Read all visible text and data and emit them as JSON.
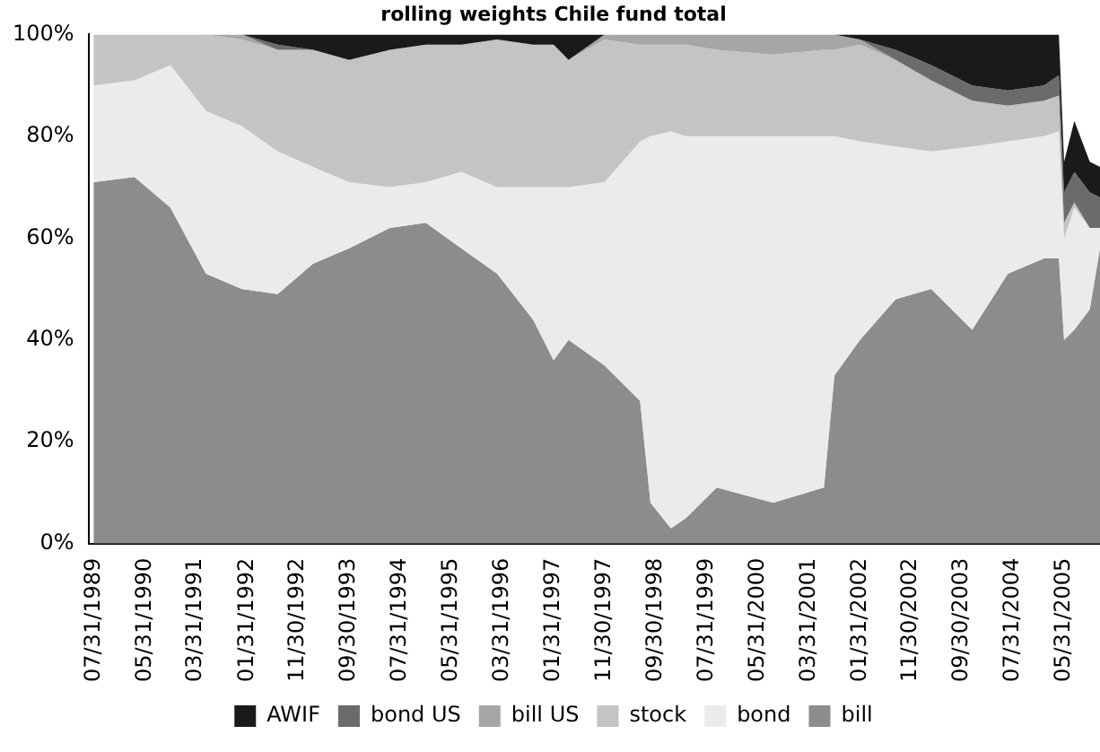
{
  "chart_data": {
    "type": "area",
    "title": "rolling weights Chile fund total",
    "stacked": true,
    "x": [
      "1989-07-31",
      "1990-03-31",
      "1990-10-31",
      "1991-05-31",
      "1991-12-31",
      "1992-07-31",
      "1993-02-28",
      "1993-09-30",
      "1994-05-31",
      "1994-12-31",
      "1995-07-31",
      "1996-02-29",
      "1996-09-30",
      "1997-01-31",
      "1997-04-30",
      "1997-11-30",
      "1998-06-30",
      "1998-08-31",
      "1998-12-31",
      "1999-03-31",
      "1999-09-30",
      "2000-08-31",
      "2001-06-30",
      "2001-08-31",
      "2002-01-31",
      "2002-08-31",
      "2003-03-31",
      "2003-11-30",
      "2004-06-30",
      "2005-01-31",
      "2005-04-30",
      "2005-05-31",
      "2005-07-31",
      "2005-10-31",
      "2005-12-31"
    ],
    "series": [
      {
        "name": "bill",
        "color": "#8c8c8c",
        "values": [
          71,
          72,
          66,
          53,
          50,
          49,
          55,
          58,
          62,
          63,
          58,
          53,
          44,
          36,
          40,
          35,
          28,
          8,
          3,
          5,
          11,
          8,
          11,
          33,
          40,
          48,
          50,
          42,
          53,
          56,
          56,
          40,
          42,
          46,
          58
        ]
      },
      {
        "name": "bond",
        "color": "#ebebeb",
        "values": [
          19,
          19,
          28,
          32,
          32,
          28,
          19,
          13,
          8,
          8,
          15,
          17,
          26,
          34,
          30,
          36,
          51,
          72,
          78,
          75,
          69,
          72,
          69,
          47,
          39,
          30,
          27,
          36,
          26,
          24,
          25,
          20,
          24,
          16,
          4
        ]
      },
      {
        "name": "stock",
        "color": "#c4c4c4",
        "values": [
          10,
          9,
          6,
          15,
          17,
          20,
          23,
          24,
          27,
          27,
          25,
          29,
          28,
          28,
          25,
          28,
          19,
          18,
          17,
          18,
          17,
          16,
          17,
          17,
          19,
          17,
          14,
          9,
          7,
          7,
          7,
          3,
          1,
          0,
          0
        ]
      },
      {
        "name": "bill US",
        "color": "#a6a6a6",
        "values": [
          null,
          null,
          null,
          0,
          1,
          0,
          null,
          null,
          null,
          null,
          null,
          null,
          null,
          null,
          0,
          1,
          2,
          2,
          2,
          2,
          3,
          4,
          3,
          3,
          1,
          0,
          null,
          null,
          null,
          null,
          null,
          null,
          null,
          null,
          null
        ]
      },
      {
        "name": "bond US",
        "color": "#6b6b6b",
        "values": [
          null,
          null,
          null,
          null,
          0,
          1,
          0,
          null,
          null,
          null,
          null,
          null,
          null,
          null,
          null,
          null,
          null,
          null,
          null,
          null,
          null,
          null,
          null,
          null,
          0,
          2,
          3,
          3,
          3,
          3,
          4,
          6,
          6,
          7,
          6
        ]
      },
      {
        "name": "AWIF",
        "color": "#1a1a1a",
        "values": [
          null,
          null,
          null,
          null,
          0,
          2,
          3,
          5,
          3,
          2,
          2,
          1,
          2,
          2,
          5,
          0,
          null,
          null,
          null,
          null,
          null,
          null,
          null,
          0,
          1,
          3,
          6,
          10,
          11,
          10,
          8,
          6,
          10,
          6,
          6
        ]
      }
    ],
    "xlim": [
      "1989-06-30",
      "2005-12-31"
    ],
    "xticks": [
      {
        "value": "1989-07-31",
        "label": "07/31/1989"
      },
      {
        "value": "1990-05-31",
        "label": "05/31/1990"
      },
      {
        "value": "1991-03-31",
        "label": "03/31/1991"
      },
      {
        "value": "1992-01-31",
        "label": "01/31/1992"
      },
      {
        "value": "1992-11-30",
        "label": "11/30/1992"
      },
      {
        "value": "1993-09-30",
        "label": "09/30/1993"
      },
      {
        "value": "1994-07-31",
        "label": "07/31/1994"
      },
      {
        "value": "1995-05-31",
        "label": "05/31/1995"
      },
      {
        "value": "1996-03-31",
        "label": "03/31/1996"
      },
      {
        "value": "1997-01-31",
        "label": "01/31/1997"
      },
      {
        "value": "1997-11-30",
        "label": "11/30/1997"
      },
      {
        "value": "1998-09-30",
        "label": "09/30/1998"
      },
      {
        "value": "1999-07-31",
        "label": "07/31/1999"
      },
      {
        "value": "2000-05-31",
        "label": "05/31/2000"
      },
      {
        "value": "2001-03-31",
        "label": "03/31/2001"
      },
      {
        "value": "2002-01-31",
        "label": "01/31/2002"
      },
      {
        "value": "2002-11-30",
        "label": "11/30/2002"
      },
      {
        "value": "2003-09-30",
        "label": "09/30/2003"
      },
      {
        "value": "2004-07-31",
        "label": "07/31/2004"
      },
      {
        "value": "2005-05-31",
        "label": "05/31/2005"
      }
    ],
    "ylim": [
      0,
      100
    ],
    "yticks": [
      {
        "value": 0,
        "label": "0%"
      },
      {
        "value": 20,
        "label": "20%"
      },
      {
        "value": 40,
        "label": "40%"
      },
      {
        "value": 60,
        "label": "60%"
      },
      {
        "value": 80,
        "label": "80%"
      },
      {
        "value": 100,
        "label": "100%"
      }
    ],
    "grid": false,
    "legend": "bottom",
    "marker": "none"
  }
}
